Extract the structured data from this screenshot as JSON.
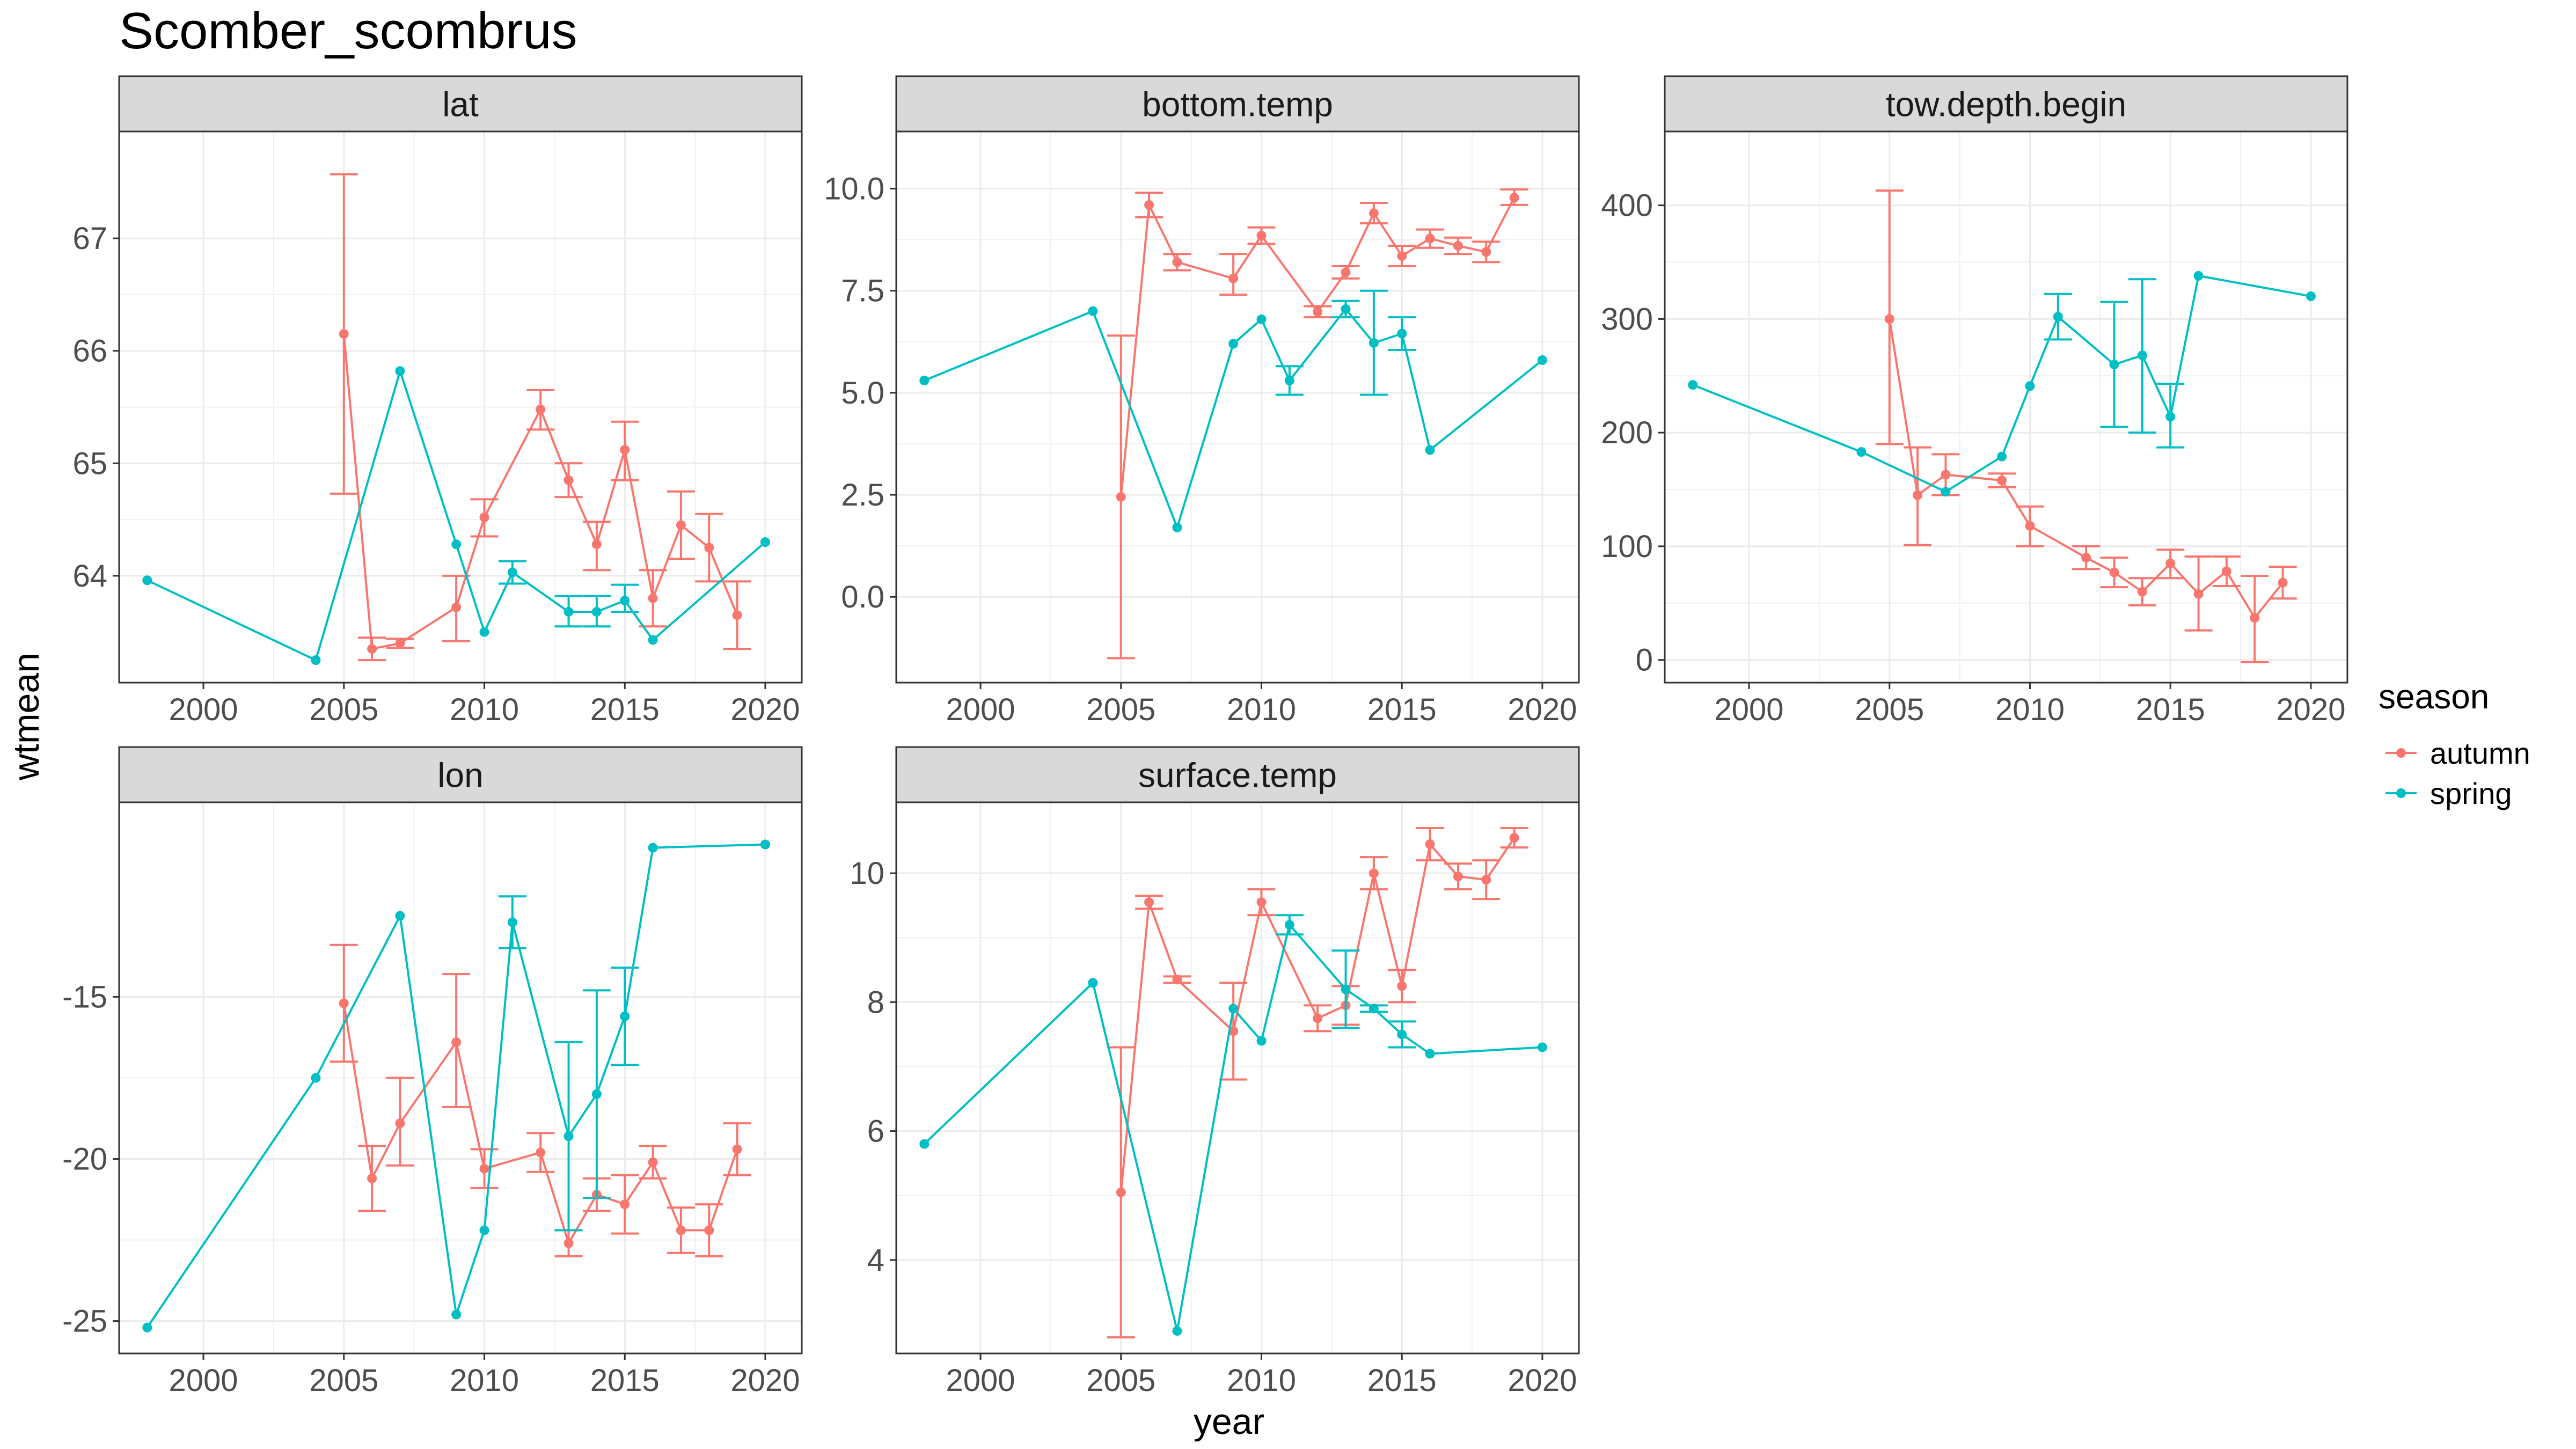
{
  "title": "Scomber_scombrus",
  "xlabel": "year",
  "ylabel": "wtmean",
  "legend": {
    "title": "season",
    "items": [
      {
        "name": "autumn",
        "color": "#F8766D"
      },
      {
        "name": "spring",
        "color": "#00BFC4"
      }
    ],
    "placement": "right"
  },
  "chart_data": {
    "type": "line",
    "facet": "wrap",
    "grid": true,
    "shared_x": {
      "range": [
        1997,
        2021.3
      ],
      "ticks": [
        2000,
        2005,
        2010,
        2015,
        2020
      ],
      "tick_labels": [
        "2000",
        "2005",
        "2010",
        "2015",
        "2020"
      ]
    },
    "panels": [
      {
        "label": "lat",
        "ylim": [
          63.05,
          67.95
        ],
        "yticks": [
          64,
          65,
          66,
          67
        ],
        "ytick_labels": [
          "64",
          "65",
          "66",
          "67"
        ],
        "series": [
          {
            "name": "autumn",
            "color": "#F8766D",
            "x": [
              2005,
              2006,
              2007,
              2009,
              2010,
              2012,
              2013,
              2014,
              2015,
              2016,
              2017,
              2018,
              2019
            ],
            "y": [
              66.15,
              63.35,
              63.4,
              63.72,
              64.52,
              65.48,
              64.85,
              64.28,
              65.12,
              63.8,
              64.45,
              64.25,
              63.65
            ],
            "lo": [
              64.73,
              63.25,
              63.36,
              63.42,
              64.35,
              65.3,
              64.7,
              64.05,
              64.85,
              63.55,
              64.15,
              63.95,
              63.35
            ],
            "hi": [
              67.57,
              63.45,
              63.44,
              64.0,
              64.68,
              65.65,
              65.0,
              64.48,
              65.37,
              64.05,
              64.75,
              64.55,
              63.95
            ]
          },
          {
            "name": "spring",
            "color": "#00BFC4",
            "x": [
              1998,
              2004,
              2007,
              2009,
              2010,
              2011,
              2013,
              2014,
              2015,
              2016,
              2020
            ],
            "y": [
              63.96,
              63.25,
              65.82,
              64.28,
              63.5,
              64.03,
              63.68,
              63.68,
              63.78,
              63.43,
              64.3
            ],
            "lo": [
              null,
              null,
              null,
              null,
              null,
              63.93,
              63.55,
              63.55,
              63.68,
              null,
              null
            ],
            "hi": [
              null,
              null,
              null,
              null,
              null,
              64.13,
              63.82,
              63.82,
              63.92,
              null,
              null
            ]
          }
        ]
      },
      {
        "label": "bottom.temp",
        "ylim": [
          -2.1,
          11.4
        ],
        "yticks": [
          0,
          2.5,
          5,
          7.5,
          10
        ],
        "ytick_labels": [
          "0.0",
          "2.5",
          "5.0",
          "7.5",
          "10.0"
        ],
        "series": [
          {
            "name": "autumn",
            "color": "#F8766D",
            "x": [
              2005,
              2006,
              2007,
              2009,
              2010,
              2012,
              2013,
              2014,
              2015,
              2016,
              2017,
              2018,
              2019
            ],
            "y": [
              2.45,
              9.6,
              8.2,
              7.8,
              8.85,
              6.98,
              7.95,
              9.4,
              8.35,
              8.78,
              8.6,
              8.45,
              9.78
            ],
            "lo": [
              -1.5,
              9.3,
              8.0,
              7.4,
              8.65,
              6.85,
              7.8,
              9.15,
              8.1,
              8.55,
              8.4,
              8.2,
              9.6
            ],
            "hi": [
              6.4,
              9.9,
              8.4,
              8.4,
              9.05,
              7.12,
              8.1,
              9.65,
              8.6,
              9.0,
              8.8,
              8.7,
              9.98
            ]
          },
          {
            "name": "spring",
            "color": "#00BFC4",
            "x": [
              1998,
              2004,
              2007,
              2009,
              2010,
              2011,
              2013,
              2014,
              2015,
              2016,
              2020
            ],
            "y": [
              5.3,
              7.0,
              1.7,
              6.2,
              6.8,
              5.3,
              7.05,
              6.22,
              6.45,
              3.6,
              5.8
            ],
            "lo": [
              null,
              null,
              null,
              null,
              null,
              4.95,
              6.85,
              4.95,
              6.05,
              null,
              null
            ],
            "hi": [
              null,
              null,
              null,
              null,
              null,
              5.65,
              7.25,
              7.5,
              6.85,
              null,
              null
            ]
          }
        ]
      },
      {
        "label": "tow.depth.begin",
        "ylim": [
          -20,
          465
        ],
        "yticks": [
          0,
          100,
          200,
          300,
          400
        ],
        "ytick_labels": [
          "0",
          "100",
          "200",
          "300",
          "400"
        ],
        "series": [
          {
            "name": "autumn",
            "color": "#F8766D",
            "x": [
              2005,
              2006,
              2007,
              2009,
              2010,
              2012,
              2013,
              2014,
              2015,
              2016,
              2017,
              2018,
              2019
            ],
            "y": [
              300,
              145,
              163,
              158,
              118,
              90,
              77,
              60,
              85,
              58,
              78,
              37,
              68
            ],
            "lo": [
              190,
              101,
              145,
              152,
              100,
              80,
              64,
              48,
              72,
              26,
              65,
              -2,
              54
            ],
            "hi": [
              413,
              187,
              181,
              164,
              135,
              100,
              90,
              72,
              97,
              91,
              91,
              74,
              82
            ]
          },
          {
            "name": "spring",
            "color": "#00BFC4",
            "x": [
              1998,
              2004,
              2007,
              2009,
              2010,
              2011,
              2013,
              2014,
              2015,
              2016,
              2020
            ],
            "y": [
              242,
              183,
              148,
              179,
              241,
              302,
              260,
              268,
              214,
              338,
              320
            ],
            "lo": [
              null,
              null,
              null,
              null,
              null,
              282,
              205,
              200,
              187,
              null,
              null
            ],
            "hi": [
              null,
              null,
              null,
              null,
              null,
              322,
              315,
              335,
              243,
              null,
              null
            ]
          }
        ]
      },
      {
        "label": "lon",
        "ylim": [
          -26.0,
          -9.0
        ],
        "yticks": [
          -25,
          -20,
          -15
        ],
        "ytick_labels": [
          "-25",
          "-20",
          "-15"
        ],
        "series": [
          {
            "name": "autumn",
            "color": "#F8766D",
            "x": [
              2005,
              2006,
              2007,
              2009,
              2010,
              2012,
              2013,
              2014,
              2015,
              2016,
              2017,
              2018,
              2019
            ],
            "y": [
              -15.2,
              -20.6,
              -18.9,
              -16.4,
              -20.3,
              -19.8,
              -22.6,
              -21.1,
              -21.4,
              -20.1,
              -22.2,
              -22.2,
              -19.7
            ],
            "lo": [
              -17.0,
              -21.6,
              -20.2,
              -18.4,
              -20.9,
              -20.4,
              -23.0,
              -21.6,
              -22.3,
              -20.6,
              -22.9,
              -23.0,
              -20.5
            ],
            "hi": [
              -13.4,
              -19.6,
              -17.5,
              -14.3,
              -19.7,
              -19.2,
              -22.2,
              -20.6,
              -20.5,
              -19.6,
              -21.5,
              -21.4,
              -18.9
            ]
          },
          {
            "name": "spring",
            "color": "#00BFC4",
            "x": [
              1998,
              2004,
              2007,
              2009,
              2010,
              2011,
              2013,
              2014,
              2015,
              2016,
              2020
            ],
            "y": [
              -25.2,
              -17.5,
              -12.5,
              -24.8,
              -22.2,
              -12.7,
              -19.3,
              -18.0,
              -15.6,
              -10.4,
              -10.3
            ],
            "lo": [
              null,
              null,
              null,
              null,
              null,
              -13.5,
              -22.2,
              -21.2,
              -17.1,
              null,
              null
            ],
            "hi": [
              null,
              null,
              null,
              null,
              null,
              -11.9,
              -16.4,
              -14.8,
              -14.1,
              null,
              null
            ]
          }
        ]
      },
      {
        "label": "surface.temp",
        "ylim": [
          2.55,
          11.1
        ],
        "yticks": [
          4,
          6,
          8,
          10
        ],
        "ytick_labels": [
          "4",
          "6",
          "8",
          "10"
        ],
        "series": [
          {
            "name": "autumn",
            "color": "#F8766D",
            "x": [
              2005,
              2006,
              2007,
              2009,
              2010,
              2012,
              2013,
              2014,
              2015,
              2016,
              2017,
              2018,
              2019
            ],
            "y": [
              5.05,
              9.55,
              8.35,
              7.55,
              9.55,
              7.75,
              7.95,
              10.0,
              8.25,
              10.45,
              9.95,
              9.9,
              10.55
            ],
            "lo": [
              2.8,
              9.45,
              8.3,
              6.8,
              9.35,
              7.55,
              7.65,
              9.75,
              8.0,
              10.2,
              9.75,
              9.6,
              10.4
            ],
            "hi": [
              7.3,
              9.65,
              8.4,
              8.3,
              9.75,
              7.95,
              8.25,
              10.25,
              8.5,
              10.7,
              10.15,
              10.2,
              10.7
            ]
          },
          {
            "name": "spring",
            "color": "#00BFC4",
            "x": [
              1998,
              2004,
              2007,
              2009,
              2010,
              2011,
              2013,
              2014,
              2015,
              2016,
              2020
            ],
            "y": [
              5.8,
              8.3,
              2.9,
              7.9,
              7.4,
              9.2,
              8.2,
              7.9,
              7.5,
              7.2,
              7.3
            ],
            "lo": [
              null,
              null,
              null,
              null,
              null,
              9.05,
              7.6,
              7.85,
              7.3,
              null,
              null
            ],
            "hi": [
              null,
              null,
              null,
              null,
              null,
              9.35,
              8.8,
              7.95,
              7.7,
              null,
              null
            ]
          }
        ]
      }
    ]
  }
}
